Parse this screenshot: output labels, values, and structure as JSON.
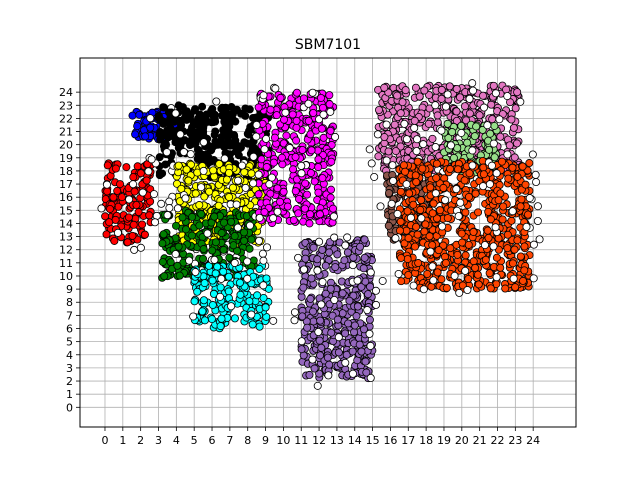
{
  "chart_data": {
    "type": "scatter",
    "title": "SBM7101",
    "xlabel": "",
    "ylabel": "",
    "xlim": [
      -1.4,
      26.4
    ],
    "ylim": [
      -1.5,
      26.6
    ],
    "xticks": [
      0,
      1,
      2,
      3,
      4,
      5,
      6,
      7,
      8,
      9,
      10,
      11,
      12,
      13,
      14,
      15,
      16,
      17,
      18,
      19,
      20,
      21,
      22,
      23,
      24
    ],
    "yticks": [
      0,
      1,
      2,
      3,
      4,
      5,
      6,
      7,
      8,
      9,
      10,
      11,
      12,
      13,
      14,
      15,
      16,
      17,
      18,
      19,
      20,
      21,
      22,
      23,
      24
    ],
    "grid": true,
    "clusters": [
      {
        "color": "#ff0000",
        "x": [
          0,
          2.6
        ],
        "y": [
          12.5,
          18.6
        ]
      },
      {
        "color": "#0000ff",
        "x": [
          1.5,
          4.2
        ],
        "y": [
          20.4,
          22.6
        ]
      },
      {
        "color": "#000000",
        "x": [
          3.0,
          9.2
        ],
        "y": [
          17.5,
          23.0
        ]
      },
      {
        "color": "#ffff00",
        "x": [
          4.0,
          9.0
        ],
        "y": [
          12.2,
          18.6
        ]
      },
      {
        "color": "#008000",
        "x": [
          3.2,
          8.5
        ],
        "y": [
          9.8,
          15.0
        ]
      },
      {
        "color": "#00ffff",
        "x": [
          5.0,
          9.2
        ],
        "y": [
          6.0,
          10.8
        ]
      },
      {
        "color": "#ff00ff",
        "x": [
          8.6,
          12.8
        ],
        "y": [
          14.0,
          24.0
        ]
      },
      {
        "color": "#9467bd",
        "x": [
          11.0,
          15.0
        ],
        "y": [
          2.2,
          12.8
        ]
      },
      {
        "color": "#e377c2",
        "x": [
          15.3,
          23.2
        ],
        "y": [
          18.0,
          24.5
        ]
      },
      {
        "color": "#98df8a",
        "x": [
          19.0,
          22.0
        ],
        "y": [
          17.5,
          21.6
        ]
      },
      {
        "color": "#8c564b",
        "x": [
          15.8,
          18.5
        ],
        "y": [
          12.5,
          17.8
        ]
      },
      {
        "color": "#ff4500",
        "x": [
          16.5,
          23.8
        ],
        "y": [
          9.0,
          18.8
        ]
      }
    ],
    "outlier_color": "#ffffff"
  }
}
